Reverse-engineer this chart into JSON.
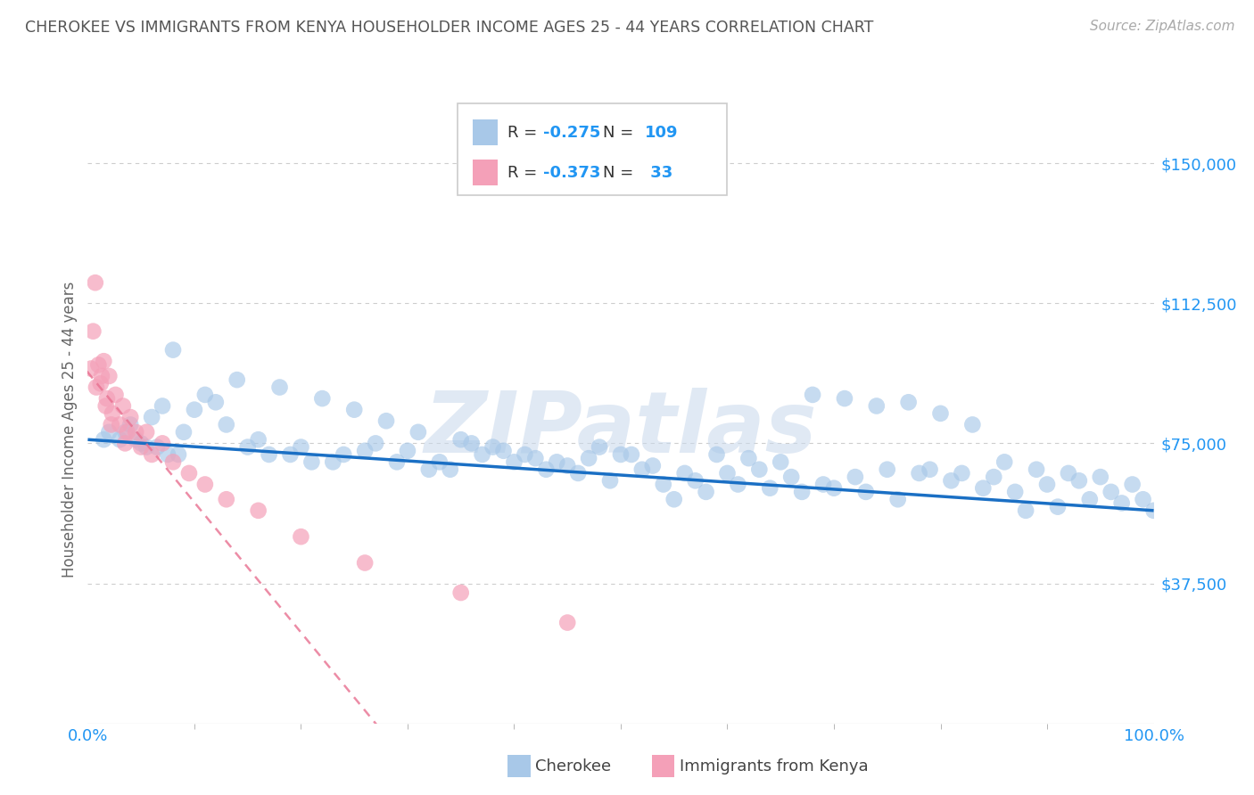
{
  "title": "CHEROKEE VS IMMIGRANTS FROM KENYA HOUSEHOLDER INCOME AGES 25 - 44 YEARS CORRELATION CHART",
  "source": "Source: ZipAtlas.com",
  "ylabel": "Householder Income Ages 25 - 44 years",
  "yticks": [
    37500,
    75000,
    112500,
    150000
  ],
  "ytick_labels": [
    "$37,500",
    "$75,000",
    "$112,500",
    "$150,000"
  ],
  "watermark": "ZIPatlas",
  "cherokee_color": "#a8c8e8",
  "kenya_color": "#f4a0b8",
  "cherokee_line_color": "#1a6fc4",
  "kenya_line_color": "#e87090",
  "background_color": "#ffffff",
  "grid_color": "#c8c8c8",
  "title_color": "#555555",
  "axis_color": "#2196F3",
  "legend_label_cherokee": "Cherokee",
  "legend_label_kenya": "Immigrants from Kenya",
  "xmin": 0.0,
  "xmax": 100.0,
  "ymin": 0,
  "ymax": 157500,
  "cherokee_trend_x0": 0.0,
  "cherokee_trend_y0": 76000,
  "cherokee_trend_x1": 100.0,
  "cherokee_trend_y1": 57000,
  "kenya_trend_x0": 0.0,
  "kenya_trend_y0": 94000,
  "kenya_trend_x1": 27.0,
  "kenya_trend_y1": 0,
  "cherokee_scatter_x": [
    1.5,
    3.5,
    8.0,
    14.0,
    18.0,
    22.0,
    25.0,
    28.0,
    31.0,
    35.0,
    38.0,
    41.0,
    44.0,
    47.0,
    50.0,
    53.0,
    56.0,
    59.0,
    62.0,
    65.0,
    68.0,
    71.0,
    74.0,
    77.0,
    80.0,
    83.0,
    86.0,
    89.0,
    92.0,
    95.0,
    98.0,
    4.0,
    6.0,
    10.0,
    12.0,
    16.0,
    20.0,
    24.0,
    27.0,
    30.0,
    33.0,
    36.0,
    39.0,
    42.0,
    45.0,
    48.0,
    51.0,
    54.0,
    57.0,
    60.0,
    63.0,
    66.0,
    69.0,
    72.0,
    75.0,
    78.0,
    81.0,
    84.0,
    87.0,
    90.0,
    93.0,
    96.0,
    99.0,
    5.0,
    9.0,
    13.0,
    17.0,
    21.0,
    26.0,
    29.0,
    32.0,
    37.0,
    40.0,
    43.0,
    46.0,
    49.0,
    52.0,
    55.0,
    58.0,
    61.0,
    64.0,
    67.0,
    70.0,
    73.0,
    76.0,
    79.0,
    82.0,
    85.0,
    88.0,
    91.0,
    94.0,
    97.0,
    100.0,
    7.0,
    11.0,
    15.0,
    19.0,
    23.0,
    34.0,
    4.5,
    6.5,
    8.5,
    5.5,
    7.5,
    3.0,
    2.0
  ],
  "cherokee_scatter_y": [
    76000,
    78000,
    100000,
    92000,
    90000,
    87000,
    84000,
    81000,
    78000,
    76000,
    74000,
    72000,
    70000,
    71000,
    72000,
    69000,
    67000,
    72000,
    71000,
    70000,
    88000,
    87000,
    85000,
    86000,
    83000,
    80000,
    70000,
    68000,
    67000,
    66000,
    64000,
    80000,
    82000,
    84000,
    86000,
    76000,
    74000,
    72000,
    75000,
    73000,
    70000,
    75000,
    73000,
    71000,
    69000,
    74000,
    72000,
    64000,
    65000,
    67000,
    68000,
    66000,
    64000,
    66000,
    68000,
    67000,
    65000,
    63000,
    62000,
    64000,
    65000,
    62000,
    60000,
    75000,
    78000,
    80000,
    72000,
    70000,
    73000,
    70000,
    68000,
    72000,
    70000,
    68000,
    67000,
    65000,
    68000,
    60000,
    62000,
    64000,
    63000,
    62000,
    63000,
    62000,
    60000,
    68000,
    67000,
    66000,
    57000,
    58000,
    60000,
    59000,
    57000,
    85000,
    88000,
    74000,
    72000,
    70000,
    68000,
    76000,
    74000,
    72000,
    74000,
    72000,
    76000,
    78000
  ],
  "kenya_scatter_x": [
    0.3,
    0.5,
    0.7,
    1.0,
    1.2,
    1.5,
    1.8,
    2.0,
    2.3,
    2.6,
    3.0,
    3.3,
    3.7,
    4.0,
    4.5,
    5.0,
    5.5,
    6.0,
    7.0,
    8.0,
    9.5,
    11.0,
    13.0,
    16.0,
    20.0,
    26.0,
    35.0,
    45.0,
    1.3,
    1.7,
    2.2,
    3.5,
    0.8
  ],
  "kenya_scatter_y": [
    95000,
    105000,
    118000,
    96000,
    91000,
    97000,
    87000,
    93000,
    83000,
    88000,
    80000,
    85000,
    78000,
    82000,
    78000,
    74000,
    78000,
    72000,
    75000,
    70000,
    67000,
    64000,
    60000,
    57000,
    50000,
    43000,
    35000,
    27000,
    93000,
    85000,
    80000,
    75000,
    90000
  ]
}
